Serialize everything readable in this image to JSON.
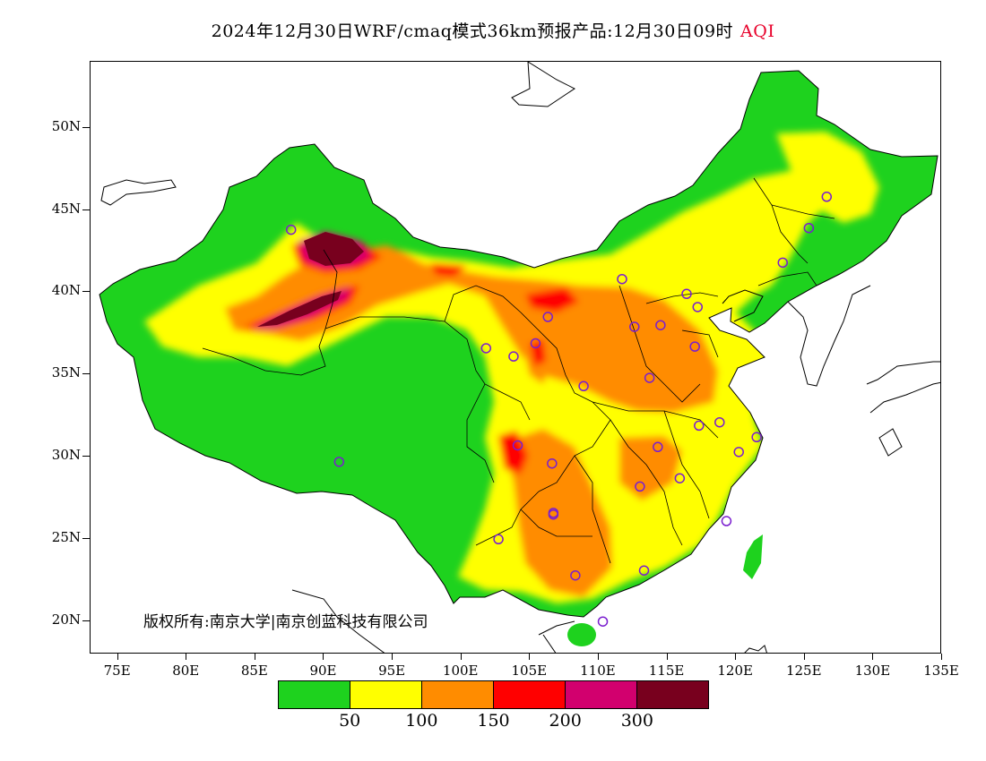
{
  "title": {
    "main": "2024年12月30日WRF/cmaq模式36km预报产品:12月30日09时",
    "variable": "AQI"
  },
  "axes": {
    "lat_labels": [
      "50N",
      "45N",
      "40N",
      "35N",
      "30N",
      "25N",
      "20N"
    ],
    "lon_labels": [
      "75E",
      "80E",
      "85E",
      "90E",
      "95E",
      "100E",
      "105E",
      "110E",
      "115E",
      "120E",
      "125E",
      "130E",
      "135E"
    ],
    "lon_range": [
      73,
      135
    ],
    "lat_range": [
      18,
      54
    ]
  },
  "copyright": "版权所有:南京大学|南京创蓝科技有限公司",
  "legend": {
    "colors": [
      "#1ed21e",
      "#ffff00",
      "#ff8c00",
      "#ff0000",
      "#d2006e",
      "#78001e"
    ],
    "labels": [
      "50",
      "100",
      "150",
      "200",
      "300"
    ]
  },
  "cities": [
    [
      87.6,
      43.8
    ],
    [
      91.1,
      29.7
    ],
    [
      101.8,
      36.6
    ],
    [
      103.8,
      36.1
    ],
    [
      106.3,
      38.5
    ],
    [
      104.1,
      30.7
    ],
    [
      106.6,
      29.6
    ],
    [
      106.7,
      26.6
    ],
    [
      102.7,
      25.0
    ],
    [
      108.3,
      22.8
    ],
    [
      110.3,
      20.0
    ],
    [
      113.3,
      23.1
    ],
    [
      119.3,
      26.1
    ],
    [
      120.2,
      30.3
    ],
    [
      121.5,
      31.2
    ],
    [
      118.8,
      32.1
    ],
    [
      117.3,
      31.9
    ],
    [
      115.9,
      28.7
    ],
    [
      113.0,
      28.2
    ],
    [
      114.3,
      30.6
    ],
    [
      113.7,
      34.8
    ],
    [
      108.9,
      34.3
    ],
    [
      112.6,
      37.9
    ],
    [
      114.5,
      38.0
    ],
    [
      116.4,
      39.9
    ],
    [
      117.2,
      39.1
    ],
    [
      117.0,
      36.7
    ],
    [
      111.7,
      40.8
    ],
    [
      123.4,
      41.8
    ],
    [
      125.3,
      43.9
    ],
    [
      126.6,
      45.8
    ],
    [
      105.4,
      36.9
    ],
    [
      106.7,
      26.5
    ]
  ]
}
